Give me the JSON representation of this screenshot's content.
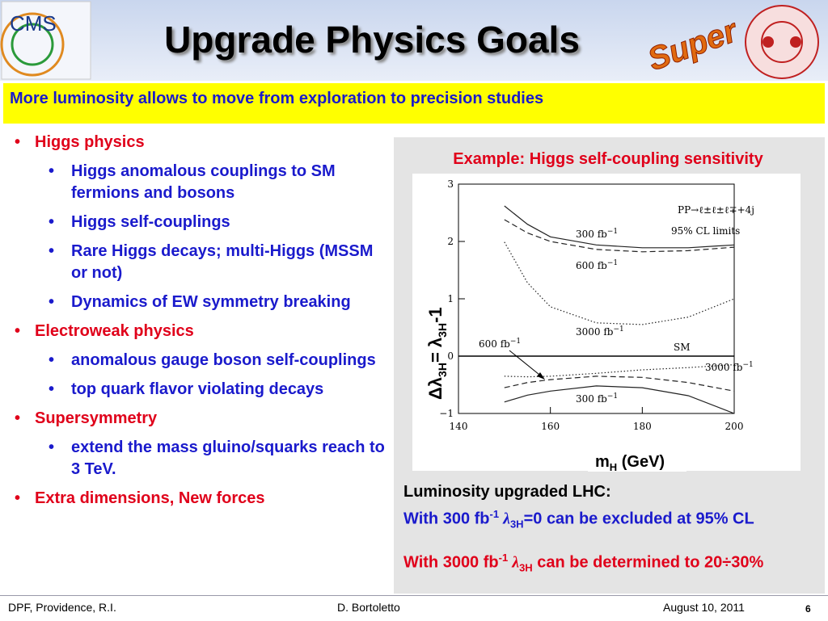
{
  "header": {
    "title": "Upgrade Physics Goals",
    "logo_left": "CMS",
    "logo_right": "Super"
  },
  "banner": "More luminosity allows to move from exploration to precision studies",
  "bullets": [
    {
      "text": "Higgs physics",
      "sub": [
        "Higgs anomalous couplings to SM fermions and bosons",
        "Higgs self-couplings",
        "Rare Higgs decays; multi-Higgs (MSSM or not)",
        "Dynamics of EW symmetry breaking"
      ]
    },
    {
      "text": "Electroweak physics",
      "sub": [
        "anomalous gauge boson self-couplings",
        "top quark flavor violating decays"
      ]
    },
    {
      "text": "Supersymmetry",
      "sub": [
        "extend the mass gluino/squarks reach to 3 TeV."
      ]
    },
    {
      "text": "Extra dimensions, New forces",
      "sub": []
    }
  ],
  "plot": {
    "title": "Example: Higgs self-coupling sensitivity",
    "x_label": [
      "m",
      "H",
      " (GeV)"
    ],
    "y_label": [
      "Δλ",
      "3H",
      "= λ",
      "3H",
      "-1"
    ],
    "xlim": [
      140,
      200
    ],
    "xticks": [
      140,
      160,
      180,
      200
    ],
    "ylim": [
      -1,
      3
    ],
    "yticks": [
      {
        "value": -1,
        "label": "−1"
      },
      0,
      1,
      2,
      3
    ],
    "sm_line": 0,
    "annotations": [
      {
        "text": "PP→ℓ±ℓ±ℓ∓+4j"
      },
      {
        "text": "95% CL limits"
      },
      {
        "text": "300 fb",
        "sup": "−1"
      },
      {
        "text": "600 fb",
        "sup": "−1"
      },
      {
        "text": "3000 fb",
        "sup": "−1"
      },
      {
        "text": "SM"
      },
      {
        "text": "600 fb",
        "sup": "−1"
      },
      {
        "text": "3000 fb",
        "sup": "−1"
      },
      {
        "text": "300 fb",
        "sup": "−1"
      }
    ],
    "x": [
      150,
      155,
      160,
      170,
      180,
      190,
      200
    ],
    "curves": [
      {
        "style": "solid",
        "values": [
          2.62,
          2.3,
          2.08,
          1.94,
          1.89,
          1.89,
          1.94
        ]
      },
      {
        "style": "dashed",
        "values": [
          2.38,
          2.15,
          2.0,
          1.86,
          1.82,
          1.84,
          1.9
        ]
      },
      {
        "style": "dotted",
        "values": [
          1.99,
          1.28,
          0.86,
          0.58,
          0.55,
          0.68,
          1.0
        ]
      },
      {
        "style": "dotted",
        "values": [
          -0.35,
          -0.36,
          -0.35,
          -0.3,
          -0.24,
          -0.2,
          -0.15
        ]
      },
      {
        "style": "dashed",
        "values": [
          -0.55,
          -0.46,
          -0.41,
          -0.35,
          -0.37,
          -0.46,
          -0.61
        ]
      },
      {
        "style": "solid",
        "values": [
          -0.8,
          -0.68,
          -0.61,
          -0.52,
          -0.55,
          -0.69,
          -1.0
        ]
      }
    ]
  },
  "summary": {
    "heading": "Luminosity upgraded LHC:",
    "line1": [
      "With 300 fb",
      "-1",
      " λ",
      "3H",
      "=0 can be excluded at 95% CL"
    ],
    "line2": [
      "With 3000 fb",
      "-1",
      " λ",
      "3H",
      " can be determined to 20÷30%"
    ]
  },
  "footer": {
    "left": "DPF, Providence, R.I.",
    "center": "D. Bortoletto",
    "date": "August 10,  2011",
    "page": "6"
  }
}
